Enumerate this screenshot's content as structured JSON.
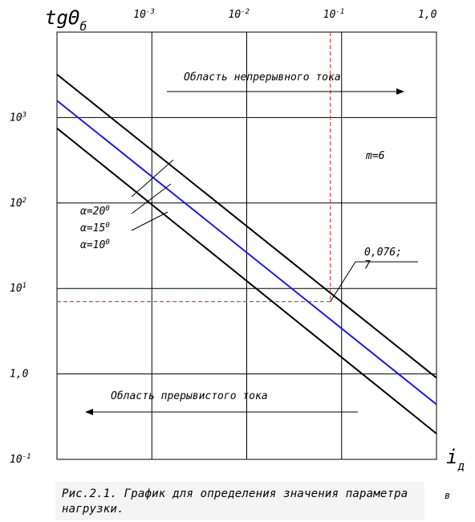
{
  "chart_data": {
    "type": "line",
    "y_axis_title": {
      "main": "tgΘ",
      "sub": "б"
    },
    "x_axis_title": {
      "main": "i",
      "sub": "д"
    },
    "x_scale": "log",
    "y_scale": "log",
    "xlim": [
      0.0001,
      1.0
    ],
    "ylim": [
      0.1,
      10000
    ],
    "grid": true,
    "x_ticks": [
      {
        "base": "10",
        "exp": "-3",
        "value": 0.001
      },
      {
        "base": "10",
        "exp": "-2",
        "value": 0.01
      },
      {
        "base": "10",
        "exp": "-1",
        "value": 0.1
      },
      {
        "base": "1,0",
        "exp": "",
        "value": 1.0
      }
    ],
    "y_ticks": [
      {
        "base": "10",
        "exp": "3",
        "value": 1000
      },
      {
        "base": "10",
        "exp": "2",
        "value": 100
      },
      {
        "base": "10",
        "exp": "1",
        "value": 10
      },
      {
        "base": "1,0",
        "exp": "",
        "value": 1
      },
      {
        "base": "10",
        "exp": "-1",
        "value": 0.1
      }
    ],
    "series": [
      {
        "name": "α=20°",
        "color": "#000000",
        "x": [
          0.0001,
          1.0
        ],
        "y": [
          3200,
          0.9
        ]
      },
      {
        "name": "α=15°",
        "color": "#1a1aee",
        "x": [
          0.0001,
          1.0
        ],
        "y": [
          1580,
          0.44
        ]
      },
      {
        "name": "α=10°",
        "color": "#000000",
        "x": [
          0.0001,
          1.0
        ],
        "y": [
          750,
          0.2
        ]
      }
    ],
    "reference_point": {
      "x": 0.076,
      "y": 7,
      "label": "0,076;\n7",
      "color": "#dd2222"
    },
    "annotations": {
      "continuous_region": "Область непрерывного тока",
      "discontinuous_region": "Область прерывистого тока",
      "parameter": "m=6"
    },
    "legend_entries": [
      {
        "sym": "α",
        "val": "=20",
        "deg": "0"
      },
      {
        "sym": "α",
        "val": "=15",
        "deg": "0"
      },
      {
        "sym": "α",
        "val": "=10",
        "deg": "0"
      }
    ],
    "point_label_lines": [
      "0,076;",
      "7"
    ]
  },
  "caption": {
    "text": "Рис.2.1. График для определения значения параметра нагрузки.",
    "suffix": "в"
  }
}
